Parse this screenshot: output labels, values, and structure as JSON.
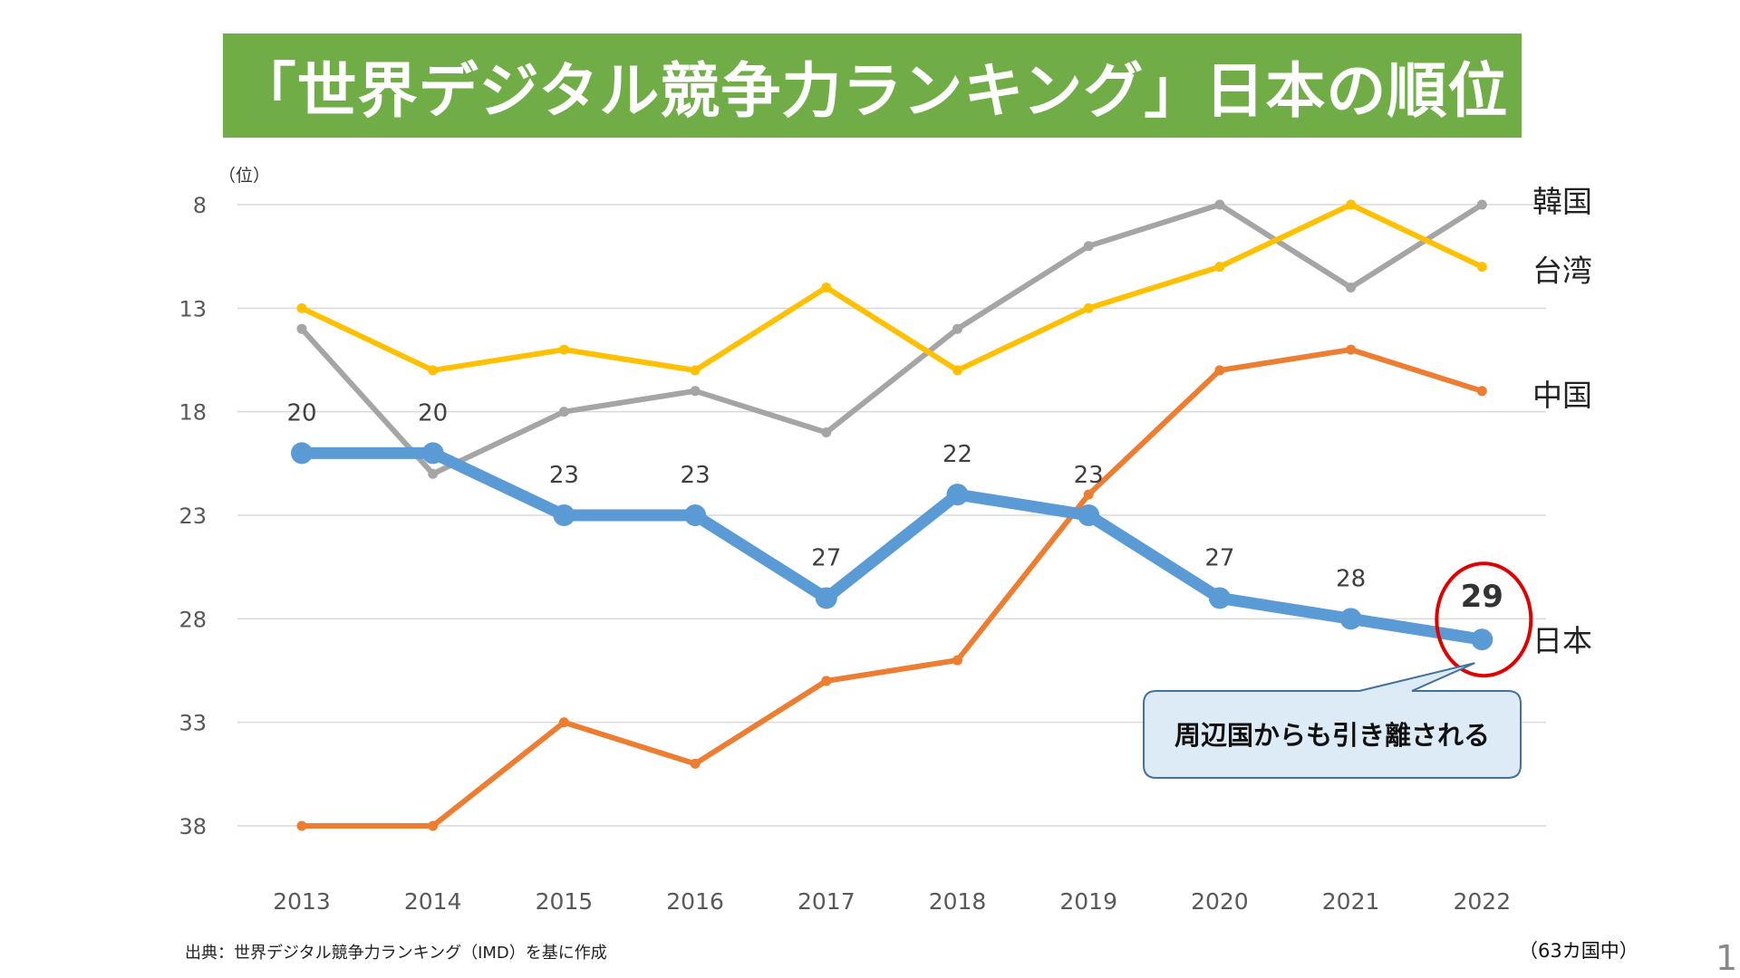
{
  "title": "「世界デジタル競争力ランキング」日本の順位",
  "colors": {
    "title_bar": "#70AD47",
    "japan": "#5B9BD5",
    "korea": "#A5A5A5",
    "taiwan": "#FFC000",
    "china": "#ED7D31",
    "highlight_circle": "#E00000",
    "callout_fill": "#DDEBF7",
    "callout_border": "#41719C"
  },
  "chart_data": {
    "type": "line",
    "title": "「世界デジタル競争力ランキング」日本の順位",
    "ylabel": "（位）",
    "xlabel": "",
    "x": [
      "2013",
      "2014",
      "2015",
      "2016",
      "2017",
      "2018",
      "2019",
      "2020",
      "2021",
      "2022"
    ],
    "y_ticks": [
      8,
      13,
      18,
      23,
      28,
      33,
      38
    ],
    "ylim": [
      8,
      38
    ],
    "y_inverted": true,
    "grid": true,
    "legend": "right (direct labels at line ends)",
    "series": [
      {
        "name": "日本",
        "key": "japan",
        "values": [
          20,
          20,
          23,
          23,
          27,
          22,
          23,
          27,
          28,
          29
        ],
        "data_labels": true,
        "emphasis": true
      },
      {
        "name": "韓国",
        "key": "korea",
        "values": [
          14,
          21,
          18,
          17,
          19,
          14,
          10,
          8,
          12,
          8
        ]
      },
      {
        "name": "台湾",
        "key": "taiwan",
        "values": [
          13,
          16,
          15,
          16,
          12,
          16,
          13,
          11,
          8,
          11
        ]
      },
      {
        "name": "中国",
        "key": "china",
        "values": [
          38,
          38,
          33,
          35,
          31,
          30,
          22,
          16,
          15,
          17
        ]
      }
    ],
    "annotations": [
      {
        "type": "circle",
        "target": "日本 2022",
        "label": "29"
      },
      {
        "type": "callout",
        "target": "日本 2022",
        "text": "周辺国からも引き離される"
      }
    ]
  },
  "source": "出典：世界デジタル競争力ランキング（IMD）を基に作成",
  "note": "（63カ国中）",
  "page_number": "1"
}
